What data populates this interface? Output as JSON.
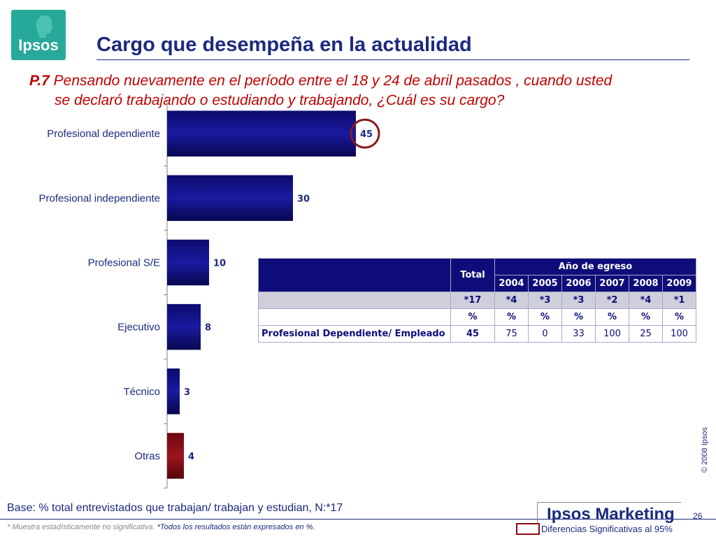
{
  "logo": {
    "text": "Ipsos",
    "color": "#27a99a"
  },
  "title": "Cargo que desempeña en la actualidad",
  "question": {
    "number": "P.7",
    "line1": " Pensando nuevamente en el período entre el 18 y 24 de abril pasados , cuando usted",
    "line2": "se declaró trabajando o estudiando y trabajando, ¿Cuál es su cargo?"
  },
  "chart_data": {
    "type": "bar",
    "orientation": "horizontal",
    "categories": [
      "Profesional dependiente",
      "Profesional independiente",
      "Profesional S/E",
      "Ejecutivo",
      "Técnico",
      "Otras"
    ],
    "values": [
      45,
      30,
      10,
      8,
      3,
      4
    ],
    "bar_colors": [
      "#0e0d7a",
      "#0e0d7a",
      "#0e0d7a",
      "#0e0d7a",
      "#0e0d7a",
      "#7a0a12"
    ],
    "highlighted": [
      "Profesional dependiente"
    ],
    "highlight_color": "#8b1a1a",
    "xlim": [
      0,
      100
    ],
    "grid": false
  },
  "table": {
    "total_label": "Total",
    "group_label": "Año de egreso",
    "years": [
      "2004",
      "2005",
      "2006",
      "2007",
      "2008",
      "2009"
    ],
    "bases": [
      "*17",
      "*4",
      "*3",
      "*3",
      "*2",
      "*4",
      "*1"
    ],
    "pct": [
      "%",
      "%",
      "%",
      "%",
      "%",
      "%",
      "%"
    ],
    "row_label": "Profesional Dependiente/ Empleado",
    "row_values": [
      "45",
      "75",
      "0",
      "33",
      "100",
      "25",
      "100"
    ]
  },
  "copyright": "© 2008 Ipsos",
  "base_text": "Base: % total entrevistados que trabajan/ trabajan y estudian, N:*17",
  "footnote1": "* Muestra estadísticamente no significativa.",
  "footnote2": " *Todos los resultados están expresados en %.",
  "brand": "Ipsos Marketing",
  "page_number": "26",
  "legend_text": "Diferencias Significativas al 95%"
}
